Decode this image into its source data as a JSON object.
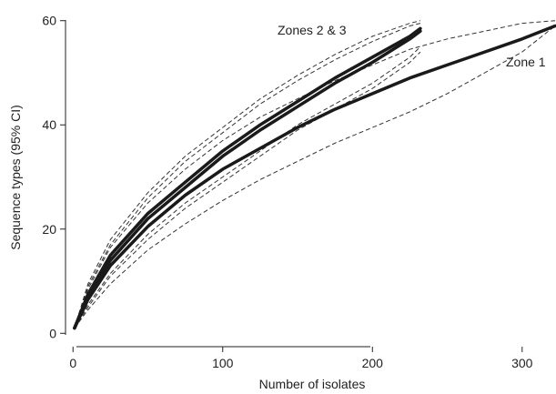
{
  "chart_data": {
    "type": "line",
    "title": "",
    "xlabel": "Number of isolates",
    "ylabel": "Sequence types (95% CI)",
    "xlim": [
      -5,
      322
    ],
    "ylim": [
      -1,
      61
    ],
    "xticks": [
      0,
      100,
      200,
      300
    ],
    "yticks": [
      0,
      20,
      40,
      60
    ],
    "grid": false,
    "annotations": [
      "Zones 2 & 3",
      "Zone 1"
    ],
    "series": [
      {
        "x": [
          1,
          10,
          25,
          50,
          75,
          100,
          125,
          150,
          175,
          200,
          225,
          232
        ],
        "y": [
          1,
          7,
          14,
          22,
          28,
          34,
          39,
          43.5,
          48,
          52,
          56.5,
          58
        ],
        "lower": [
          1,
          5,
          11,
          18,
          24,
          29,
          34,
          39,
          43,
          47,
          52,
          54
        ],
        "upper": [
          1,
          9,
          17,
          26,
          33,
          38.5,
          44,
          48.5,
          52.5,
          56,
          59,
          59.5
        ]
      },
      {
        "x": [
          1,
          10,
          25,
          50,
          75,
          100,
          125,
          150,
          175,
          200,
          225,
          232
        ],
        "y": [
          1,
          7.5,
          15,
          23,
          29,
          35,
          40,
          44.5,
          49,
          53,
          57,
          58.5
        ],
        "lower": [
          1,
          5.5,
          11.5,
          19,
          25,
          30,
          35,
          40,
          44,
          48,
          53,
          55
        ],
        "upper": [
          1,
          9.5,
          18,
          27,
          34,
          39.5,
          45,
          49.5,
          53.5,
          57,
          59.5,
          60
        ]
      },
      {
        "x": [
          1,
          10,
          25,
          50,
          75,
          100,
          125,
          150,
          175,
          200,
          225,
          250,
          275,
          300,
          322
        ],
        "y": [
          1,
          6.5,
          13,
          20.5,
          26.5,
          31.5,
          35.5,
          39.5,
          43,
          46,
          49,
          51.5,
          54,
          56.5,
          59
        ],
        "lower": [
          1,
          4.5,
          9.5,
          16,
          21,
          25.5,
          29.5,
          33,
          36.5,
          39.5,
          42.5,
          46,
          50,
          54,
          59
        ],
        "upper": [
          1,
          8.5,
          16.5,
          25,
          31.5,
          37,
          41.5,
          45,
          48.5,
          51.5,
          54.5,
          56.5,
          58,
          59.5,
          60
        ]
      }
    ]
  }
}
